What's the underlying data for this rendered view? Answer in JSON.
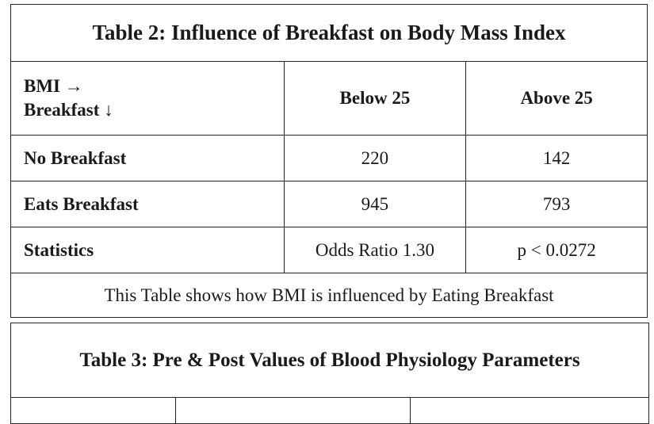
{
  "table2": {
    "title": "Table 2: Influence of Breakfast on Body Mass Index",
    "header": {
      "corner_line1": "BMI →",
      "corner_line2": "Breakfast ↓",
      "col1": "Below 25",
      "col2": "Above 25"
    },
    "rows": [
      {
        "label": "No Breakfast",
        "c1": "220",
        "c2": "142"
      },
      {
        "label": "Eats Breakfast",
        "c1": "945",
        "c2": "793"
      },
      {
        "label": "Statistics",
        "c1": "Odds Ratio 1.30",
        "c2": "p < 0.0272"
      }
    ],
    "caption": "This Table shows how BMI is influenced by Eating Breakfast"
  },
  "table3": {
    "title": "Table 3: Pre & Post Values of Blood Physiology Parameters"
  }
}
